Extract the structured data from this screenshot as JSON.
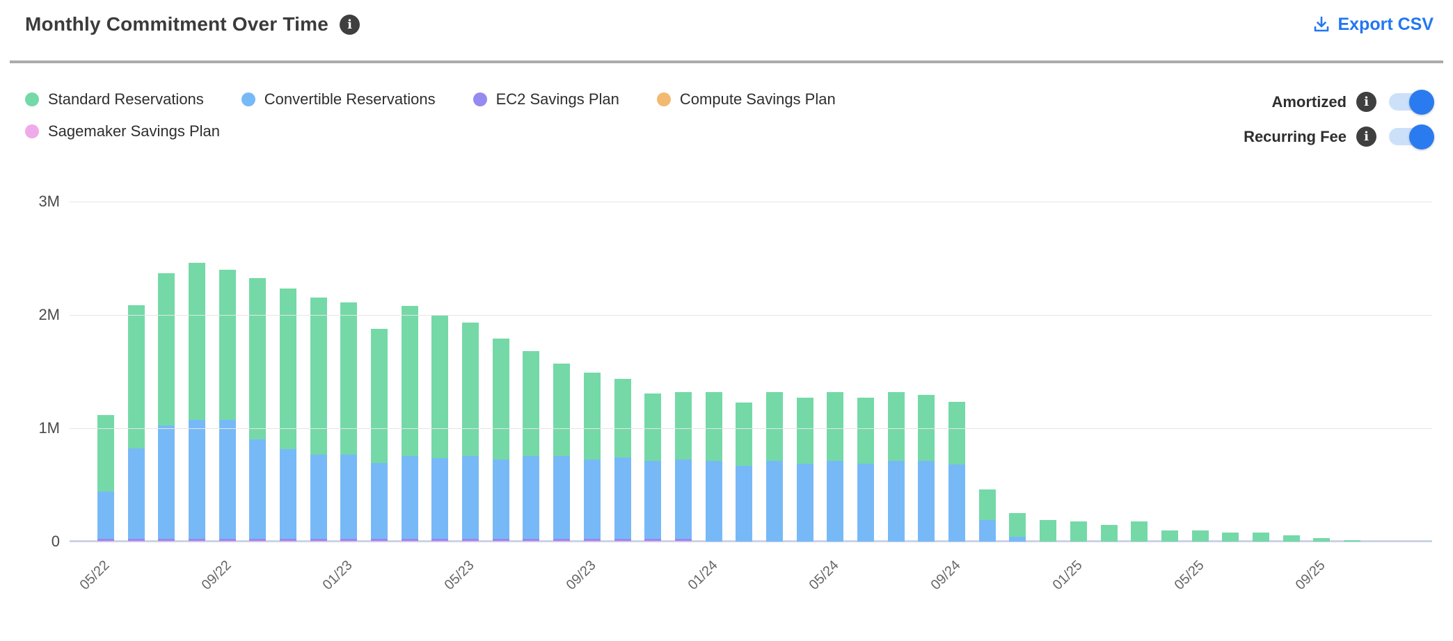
{
  "header": {
    "title": "Monthly Commitment Over Time",
    "info_glyph": "i",
    "export_label": "Export CSV"
  },
  "legend": {
    "items": [
      {
        "label": "Standard Reservations",
        "color": "#74d9a7"
      },
      {
        "label": "Convertible Reservations",
        "color": "#77b9f7"
      },
      {
        "label": "EC2 Savings Plan",
        "color": "#958aef"
      },
      {
        "label": "Compute Savings Plan",
        "color": "#f2ba70"
      },
      {
        "label": "Sagemaker Savings Plan",
        "color": "#efaae9"
      }
    ]
  },
  "toggles": [
    {
      "label": "Amortized",
      "info_glyph": "i",
      "state": "on"
    },
    {
      "label": "Recurring Fee",
      "info_glyph": "i",
      "state": "on"
    }
  ],
  "colors": {
    "accent_blue": "#2277f2",
    "toggle_on": "#2b7bf0",
    "toggle_track": "#cce0fa",
    "title_text": "#3b3b3b",
    "divider": "#ababab",
    "gridline": "#e5e5e5",
    "axis_line": "#ccd3e8",
    "x_label": "#666666",
    "y_label": "#4a4a4a"
  },
  "chart_data": {
    "type": "bar",
    "stacked": true,
    "unit": "M (millions)",
    "title": "Monthly Commitment Over Time",
    "xlabel": "",
    "ylabel": "",
    "ylim_m": [
      0,
      3
    ],
    "y_ticks": [
      {
        "label": "3M",
        "value_m": 3
      },
      {
        "label": "2M",
        "value_m": 2
      },
      {
        "label": "1M",
        "value_m": 1
      },
      {
        "label": "0",
        "value_m": 0
      }
    ],
    "grid": "horizontal",
    "legend_position": "top-left",
    "x_label_every": 4,
    "x_tick_labels": [
      "05/22",
      "09/22",
      "01/23",
      "05/23",
      "09/23",
      "01/24",
      "05/24",
      "09/24",
      "01/25",
      "05/25",
      "09/25"
    ],
    "categories": [
      "05/22",
      "06/22",
      "07/22",
      "08/22",
      "09/22",
      "10/22",
      "11/22",
      "12/22",
      "01/23",
      "02/23",
      "03/23",
      "04/23",
      "05/23",
      "06/23",
      "07/23",
      "08/23",
      "09/23",
      "10/23",
      "11/23",
      "12/23",
      "01/24",
      "02/24",
      "03/24",
      "04/24",
      "05/24",
      "06/24",
      "07/24",
      "08/24",
      "09/24",
      "10/24",
      "11/24",
      "12/24",
      "01/25",
      "02/25",
      "03/25",
      "04/25",
      "05/25",
      "06/25",
      "07/25",
      "08/25",
      "09/25",
      "10/25"
    ],
    "series": [
      {
        "name": "Standard Reservations",
        "color": "#74d9a7",
        "values_m": [
          0.675,
          1.265,
          1.345,
          1.385,
          1.325,
          1.425,
          1.415,
          1.385,
          1.345,
          1.185,
          1.325,
          1.265,
          1.175,
          1.065,
          0.925,
          0.815,
          0.765,
          0.695,
          0.595,
          0.595,
          0.61,
          0.56,
          0.61,
          0.58,
          0.61,
          0.58,
          0.61,
          0.58,
          0.55,
          0.27,
          0.21,
          0.19,
          0.18,
          0.15,
          0.18,
          0.1,
          0.1,
          0.08,
          0.08,
          0.055,
          0.03,
          0.012
        ]
      },
      {
        "name": "Convertible Reservations",
        "color": "#77b9f7",
        "values_m": [
          0.42,
          0.8,
          1.0,
          1.05,
          1.05,
          0.88,
          0.79,
          0.74,
          0.74,
          0.67,
          0.73,
          0.71,
          0.73,
          0.7,
          0.73,
          0.73,
          0.7,
          0.72,
          0.69,
          0.7,
          0.71,
          0.67,
          0.71,
          0.69,
          0.71,
          0.69,
          0.71,
          0.71,
          0.68,
          0.19,
          0.04,
          0,
          0,
          0,
          0,
          0,
          0,
          0,
          0,
          0,
          0,
          0
        ]
      },
      {
        "name": "EC2 Savings Plan",
        "color": "#958aef",
        "values_m": [
          0.02,
          0.02,
          0.02,
          0.02,
          0.02,
          0.02,
          0.02,
          0.02,
          0.02,
          0.02,
          0.02,
          0.02,
          0.02,
          0.02,
          0.02,
          0.02,
          0.02,
          0.02,
          0.02,
          0.02,
          0,
          0,
          0,
          0,
          0,
          0,
          0,
          0,
          0,
          0,
          0,
          0,
          0,
          0,
          0,
          0,
          0,
          0,
          0,
          0,
          0,
          0
        ]
      },
      {
        "name": "Compute Savings Plan",
        "color": "#f2ba70",
        "values_m": [
          0,
          0,
          0,
          0,
          0,
          0,
          0,
          0,
          0,
          0,
          0,
          0,
          0,
          0,
          0,
          0,
          0,
          0,
          0,
          0,
          0,
          0,
          0,
          0,
          0,
          0,
          0,
          0,
          0,
          0,
          0,
          0,
          0,
          0,
          0,
          0,
          0,
          0,
          0,
          0,
          0,
          0
        ]
      },
      {
        "name": "Sagemaker Savings Plan",
        "color": "#efaae9",
        "values_m": [
          0.005,
          0.005,
          0.005,
          0.005,
          0.005,
          0.005,
          0.005,
          0.005,
          0.005,
          0.005,
          0.005,
          0.005,
          0.005,
          0.005,
          0.005,
          0.005,
          0.005,
          0.005,
          0.005,
          0.005,
          0,
          0,
          0,
          0,
          0,
          0,
          0,
          0,
          0,
          0,
          0,
          0,
          0,
          0,
          0,
          0,
          0,
          0,
          0,
          0,
          0,
          0
        ]
      }
    ]
  }
}
